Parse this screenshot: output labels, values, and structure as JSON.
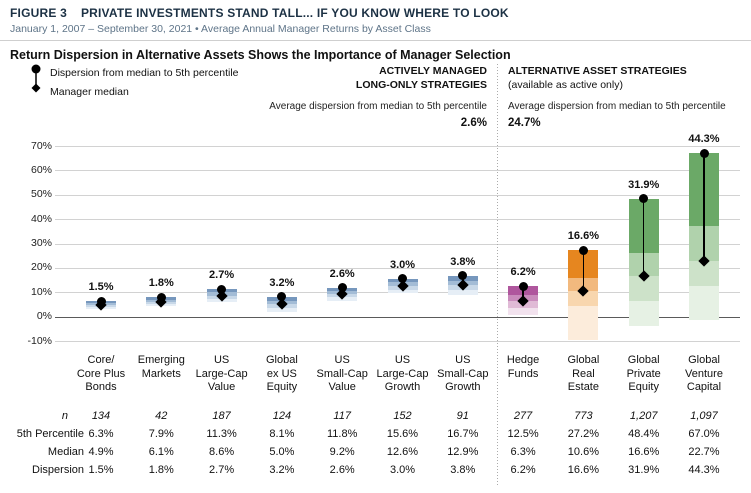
{
  "header": {
    "figure_label": "FIGURE 3",
    "title": "PRIVATE INVESTMENTS STAND TALL...  IF YOU KNOW WHERE TO LOOK",
    "subtitle": "January 1, 2007 – September 30, 2021  •  Average Annual Manager Returns by Asset Class"
  },
  "chart_title": "Return Dispersion in Alternative Assets Shows the Importance of Manager Selection",
  "legend": {
    "dispersion_label": "Dispersion from median to 5th percentile",
    "median_label": "Manager median"
  },
  "sections": {
    "left": {
      "title_line1": "ACTIVELY MANAGED",
      "title_line2": "LONG-ONLY STRATEGIES",
      "avg_label": "Average dispersion from median to 5th percentile",
      "avg_value": "2.6%"
    },
    "right": {
      "title": "ALTERNATIVE ASSET STRATEGIES",
      "note": "(available as active only)",
      "avg_label": "Average dispersion from median to 5th percentile",
      "avg_value": "24.7%"
    }
  },
  "chart_data": {
    "type": "bar",
    "title": "Return Dispersion in Alternative Assets Shows the Importance of Manager Selection",
    "ylabel": "Average Annual Manager Returns",
    "ylim": [
      -10,
      70
    ],
    "grid": true,
    "ytick_values": [
      70,
      60,
      50,
      40,
      30,
      20,
      10,
      0,
      -10
    ],
    "ytick_labels": [
      "70%",
      "60%",
      "50%",
      "40%",
      "30%",
      "20%",
      "10%",
      "0%",
      "-10%"
    ],
    "legend_position": "top-left",
    "palettes": {
      "blue": [
        "#7697bd",
        "#a3bcd6",
        "#c8d8e8",
        "#e6eef6"
      ],
      "plum": [
        "#af569d",
        "#c98bbc",
        "#e0bad6",
        "#f2e2ee"
      ],
      "orange": [
        "#e6861f",
        "#f2b97e",
        "#f8d6ae",
        "#fcecdb"
      ],
      "green": [
        "#6ba967",
        "#b0d2ac",
        "#cde2c9",
        "#e6f1e4"
      ]
    },
    "categories": [
      {
        "label_lines": [
          "Core/",
          "Core Plus",
          "Bonds"
        ],
        "group": "long-only",
        "palette": "blue",
        "n": "134",
        "p5": 6.3,
        "median": 4.9,
        "p5_label": "6.3%",
        "median_label": "4.9%",
        "dispersion": "1.5%",
        "bands": [
          6.3,
          5.6,
          4.9,
          4.1,
          3.3
        ]
      },
      {
        "label_lines": [
          "Emerging",
          "Markets"
        ],
        "group": "long-only",
        "palette": "blue",
        "n": "42",
        "p5": 7.9,
        "median": 6.1,
        "p5_label": "7.9%",
        "median_label": "6.1%",
        "dispersion": "1.8%",
        "bands": [
          7.9,
          7.0,
          6.1,
          5.2,
          4.2
        ]
      },
      {
        "label_lines": [
          "US",
          "Large-Cap",
          "Value"
        ],
        "group": "long-only",
        "palette": "blue",
        "n": "187",
        "p5": 11.3,
        "median": 8.6,
        "p5_label": "11.3%",
        "median_label": "8.6%",
        "dispersion": "2.7%",
        "bands": [
          11.3,
          10.0,
          8.6,
          7.2,
          5.8
        ]
      },
      {
        "label_lines": [
          "Global",
          "ex US",
          "Equity"
        ],
        "group": "long-only",
        "palette": "blue",
        "n": "124",
        "p5": 8.1,
        "median": 5.0,
        "p5_label": "8.1%",
        "median_label": "5.0%",
        "dispersion": "3.2%",
        "bands": [
          8.1,
          6.6,
          5.0,
          3.5,
          2.0
        ]
      },
      {
        "label_lines": [
          "US",
          "Small-Cap",
          "Value"
        ],
        "group": "long-only",
        "palette": "blue",
        "n": "117",
        "p5": 11.8,
        "median": 9.2,
        "p5_label": "11.8%",
        "median_label": "9.2%",
        "dispersion": "2.6%",
        "bands": [
          11.8,
          10.5,
          9.2,
          7.9,
          6.5
        ]
      },
      {
        "label_lines": [
          "US",
          "Large-Cap",
          "Growth"
        ],
        "group": "long-only",
        "palette": "blue",
        "n": "152",
        "p5": 15.6,
        "median": 12.6,
        "p5_label": "15.6%",
        "median_label": "12.6%",
        "dispersion": "3.0%",
        "bands": [
          15.6,
          14.1,
          12.6,
          11.1,
          9.5
        ]
      },
      {
        "label_lines": [
          "US",
          "Small-Cap",
          "Growth"
        ],
        "group": "long-only",
        "palette": "blue",
        "n": "91",
        "p5": 16.7,
        "median": 12.9,
        "p5_label": "16.7%",
        "median_label": "12.9%",
        "dispersion": "3.8%",
        "bands": [
          16.7,
          14.8,
          12.9,
          11.0,
          9.0
        ]
      },
      {
        "label_lines": [
          "Hedge",
          "Funds"
        ],
        "group": "alternative",
        "palette": "plum",
        "n": "277",
        "p5": 12.5,
        "median": 6.3,
        "p5_label": "12.5%",
        "median_label": "6.3%",
        "dispersion": "6.2%",
        "bands": [
          12.5,
          8.8,
          6.3,
          3.5,
          0.5
        ]
      },
      {
        "label_lines": [
          "Global",
          "Real",
          "Estate"
        ],
        "group": "alternative",
        "palette": "orange",
        "n": "773",
        "p5": 27.2,
        "median": 10.6,
        "p5_label": "27.2%",
        "median_label": "10.6%",
        "dispersion": "16.6%",
        "bands": [
          27.2,
          16.0,
          10.6,
          4.5,
          -9.5
        ]
      },
      {
        "label_lines": [
          "Global",
          "Private",
          "Equity"
        ],
        "group": "alternative",
        "palette": "green",
        "n": "1,207",
        "p5": 48.4,
        "median": 16.6,
        "p5_label": "48.4%",
        "median_label": "16.6%",
        "dispersion": "31.9%",
        "bands": [
          48.4,
          26.0,
          16.6,
          6.5,
          -4.0
        ]
      },
      {
        "label_lines": [
          "Global",
          "Venture",
          "Capital"
        ],
        "group": "alternative",
        "palette": "green",
        "n": "1,097",
        "p5": 67.0,
        "median": 22.7,
        "p5_label": "67.0%",
        "median_label": "22.7%",
        "dispersion": "44.3%",
        "bands": [
          67.0,
          37.0,
          22.7,
          12.5,
          -1.5
        ]
      }
    ]
  },
  "table": {
    "n_label": "n",
    "rows": [
      {
        "label": "5th Percentile",
        "field": "p5_label"
      },
      {
        "label": "Median",
        "field": "median_label"
      },
      {
        "label": "Dispersion",
        "field": "dispersion"
      }
    ]
  }
}
